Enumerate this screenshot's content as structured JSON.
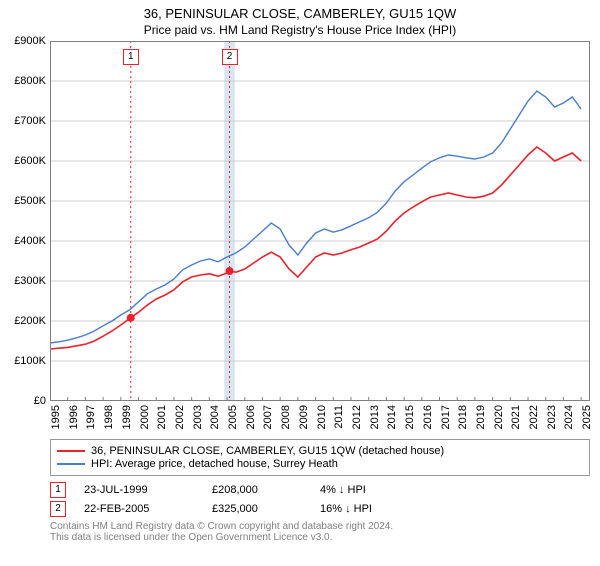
{
  "title": "36, PENINSULAR CLOSE, CAMBERLEY, GU15 1QW",
  "subtitle": "Price paid vs. HM Land Registry's House Price Index (HPI)",
  "chart": {
    "type": "line",
    "background_color": "#ffffff",
    "plot_border_color": "#808080",
    "grid_color": "#cccccc",
    "x_years": [
      1995,
      1996,
      1997,
      1998,
      1999,
      2000,
      2001,
      2002,
      2003,
      2004,
      2005,
      2006,
      2007,
      2008,
      2009,
      2010,
      2011,
      2012,
      2013,
      2014,
      2015,
      2016,
      2017,
      2018,
      2019,
      2020,
      2021,
      2022,
      2023,
      2024,
      2025
    ],
    "xlim": [
      1995,
      2025.5
    ],
    "x_tick_rotation_deg": -90,
    "x_tick_fontsize": 11,
    "y_ticks": [
      0,
      100000,
      200000,
      300000,
      400000,
      500000,
      600000,
      700000,
      800000,
      900000
    ],
    "y_tick_labels": [
      "£0",
      "£100K",
      "£200K",
      "£300K",
      "£400K",
      "£500K",
      "£600K",
      "£700K",
      "£800K",
      "£900K"
    ],
    "ylim": [
      0,
      900000
    ],
    "y_tick_fontsize": 11,
    "series": [
      {
        "name": "property",
        "label": "36, PENINSULAR CLOSE, CAMBERLEY, GU15 1QW (detached house)",
        "color": "#e8232c",
        "line_width": 1.6,
        "points": [
          [
            1995.0,
            130000
          ],
          [
            1995.5,
            132000
          ],
          [
            1996.0,
            134000
          ],
          [
            1996.5,
            138000
          ],
          [
            1997.0,
            142000
          ],
          [
            1997.5,
            150000
          ],
          [
            1998.0,
            162000
          ],
          [
            1998.5,
            175000
          ],
          [
            1999.0,
            190000
          ],
          [
            1999.56,
            208000
          ],
          [
            2000.0,
            222000
          ],
          [
            2000.5,
            240000
          ],
          [
            2001.0,
            255000
          ],
          [
            2001.5,
            265000
          ],
          [
            2002.0,
            278000
          ],
          [
            2002.5,
            298000
          ],
          [
            2003.0,
            310000
          ],
          [
            2003.5,
            315000
          ],
          [
            2004.0,
            318000
          ],
          [
            2004.5,
            312000
          ],
          [
            2005.0,
            320000
          ],
          [
            2005.14,
            325000
          ],
          [
            2005.5,
            322000
          ],
          [
            2006.0,
            330000
          ],
          [
            2006.5,
            345000
          ],
          [
            2007.0,
            360000
          ],
          [
            2007.5,
            372000
          ],
          [
            2008.0,
            360000
          ],
          [
            2008.5,
            330000
          ],
          [
            2009.0,
            310000
          ],
          [
            2009.5,
            335000
          ],
          [
            2010.0,
            360000
          ],
          [
            2010.5,
            370000
          ],
          [
            2011.0,
            365000
          ],
          [
            2011.5,
            370000
          ],
          [
            2012.0,
            378000
          ],
          [
            2012.5,
            385000
          ],
          [
            2013.0,
            395000
          ],
          [
            2013.5,
            405000
          ],
          [
            2014.0,
            425000
          ],
          [
            2014.5,
            450000
          ],
          [
            2015.0,
            470000
          ],
          [
            2015.5,
            485000
          ],
          [
            2016.0,
            498000
          ],
          [
            2016.5,
            510000
          ],
          [
            2017.0,
            515000
          ],
          [
            2017.5,
            520000
          ],
          [
            2018.0,
            515000
          ],
          [
            2018.5,
            510000
          ],
          [
            2019.0,
            508000
          ],
          [
            2019.5,
            512000
          ],
          [
            2020.0,
            520000
          ],
          [
            2020.5,
            540000
          ],
          [
            2021.0,
            565000
          ],
          [
            2021.5,
            590000
          ],
          [
            2022.0,
            615000
          ],
          [
            2022.5,
            635000
          ],
          [
            2023.0,
            620000
          ],
          [
            2023.5,
            600000
          ],
          [
            2024.0,
            610000
          ],
          [
            2024.5,
            620000
          ],
          [
            2025.0,
            600000
          ]
        ]
      },
      {
        "name": "hpi",
        "label": "HPI: Average price, detached house, Surrey Heath",
        "color": "#4a7dc9",
        "line_width": 1.4,
        "points": [
          [
            1995.0,
            145000
          ],
          [
            1995.5,
            148000
          ],
          [
            1996.0,
            152000
          ],
          [
            1996.5,
            158000
          ],
          [
            1997.0,
            165000
          ],
          [
            1997.5,
            175000
          ],
          [
            1998.0,
            188000
          ],
          [
            1998.5,
            200000
          ],
          [
            1999.0,
            215000
          ],
          [
            1999.5,
            228000
          ],
          [
            2000.0,
            248000
          ],
          [
            2000.5,
            268000
          ],
          [
            2001.0,
            280000
          ],
          [
            2001.5,
            290000
          ],
          [
            2002.0,
            305000
          ],
          [
            2002.5,
            328000
          ],
          [
            2003.0,
            340000
          ],
          [
            2003.5,
            350000
          ],
          [
            2004.0,
            355000
          ],
          [
            2004.5,
            348000
          ],
          [
            2005.0,
            360000
          ],
          [
            2005.5,
            370000
          ],
          [
            2006.0,
            385000
          ],
          [
            2006.5,
            405000
          ],
          [
            2007.0,
            425000
          ],
          [
            2007.5,
            445000
          ],
          [
            2008.0,
            430000
          ],
          [
            2008.5,
            390000
          ],
          [
            2009.0,
            365000
          ],
          [
            2009.5,
            395000
          ],
          [
            2010.0,
            420000
          ],
          [
            2010.5,
            430000
          ],
          [
            2011.0,
            422000
          ],
          [
            2011.5,
            428000
          ],
          [
            2012.0,
            438000
          ],
          [
            2012.5,
            448000
          ],
          [
            2013.0,
            458000
          ],
          [
            2013.5,
            472000
          ],
          [
            2014.0,
            495000
          ],
          [
            2014.5,
            525000
          ],
          [
            2015.0,
            548000
          ],
          [
            2015.5,
            565000
          ],
          [
            2016.0,
            582000
          ],
          [
            2016.5,
            598000
          ],
          [
            2017.0,
            608000
          ],
          [
            2017.5,
            615000
          ],
          [
            2018.0,
            612000
          ],
          [
            2018.5,
            608000
          ],
          [
            2019.0,
            605000
          ],
          [
            2019.5,
            610000
          ],
          [
            2020.0,
            620000
          ],
          [
            2020.5,
            645000
          ],
          [
            2021.0,
            680000
          ],
          [
            2021.5,
            715000
          ],
          [
            2022.0,
            750000
          ],
          [
            2022.5,
            775000
          ],
          [
            2023.0,
            760000
          ],
          [
            2023.5,
            735000
          ],
          [
            2024.0,
            745000
          ],
          [
            2024.5,
            760000
          ],
          [
            2025.0,
            730000
          ]
        ]
      }
    ],
    "sale_markers": [
      {
        "index": 1,
        "year": 1999.56,
        "price": 208000,
        "dot_color": "#e8232c",
        "dash_color": "#e8232c",
        "band": false
      },
      {
        "index": 2,
        "year": 2005.14,
        "price": 325000,
        "dot_color": "#e8232c",
        "dash_color": "#e8232c",
        "band": true,
        "band_color": "#d9e6f2",
        "band_width_years": 0.6
      }
    ],
    "marker_box_border": "#e8232c",
    "marker_box_text_color": "#000000",
    "marker_dot_radius": 4
  },
  "legend": {
    "border_color": "#999999",
    "fontsize": 11
  },
  "sales": [
    {
      "num": "1",
      "date": "23-JUL-1999",
      "price": "£208,000",
      "diff": "4% ↓ HPI"
    },
    {
      "num": "2",
      "date": "22-FEB-2005",
      "price": "£325,000",
      "diff": "16% ↓ HPI"
    }
  ],
  "footer_line1": "Contains HM Land Registry data © Crown copyright and database right 2024.",
  "footer_line2": "This data is licensed under the Open Government Licence v3.0.",
  "footer_color": "#808080"
}
